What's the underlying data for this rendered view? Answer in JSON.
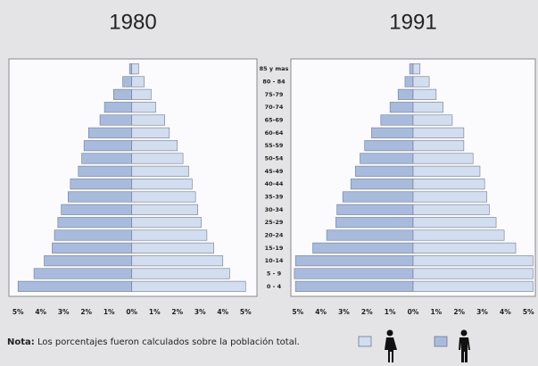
{
  "chart_data": [
    {
      "type": "pyramid",
      "title": "1980",
      "categories": [
        "0 - 4",
        "5 - 9",
        "10-14",
        "15-19",
        "20-24",
        "25-29",
        "30-34",
        "35-39",
        "40-44",
        "45-49",
        "50-54",
        "55-59",
        "60-64",
        "65-69",
        "70-74",
        "75-79",
        "80 - 84",
        "85 y mas"
      ],
      "series": [
        {
          "color": "#a9bbdc",
          "values": [
            -5.0,
            -4.3,
            -3.85,
            -3.5,
            -3.4,
            -3.25,
            -3.1,
            -2.8,
            -2.7,
            -2.35,
            -2.2,
            -2.1,
            -1.9,
            -1.4,
            -1.2,
            -0.8,
            -0.4,
            -0.1
          ]
        },
        {
          "color": "#d3ddf0",
          "values": [
            5.0,
            4.3,
            4.0,
            3.6,
            3.3,
            3.05,
            2.9,
            2.8,
            2.65,
            2.5,
            2.25,
            2.0,
            1.65,
            1.45,
            1.05,
            0.85,
            0.55,
            0.3
          ]
        }
      ],
      "xlim": [
        -5.4,
        5.5
      ],
      "xticks": [
        {
          "value": -5,
          "label": "5%"
        },
        {
          "value": -4,
          "label": "4%"
        },
        {
          "value": -3,
          "label": "3%"
        },
        {
          "value": -2,
          "label": "2%"
        },
        {
          "value": -1,
          "label": "1%"
        },
        {
          "value": 0,
          "label": "0%"
        },
        {
          "value": 1,
          "label": "1%"
        },
        {
          "value": 2,
          "label": "2%"
        },
        {
          "value": 3,
          "label": "3%"
        },
        {
          "value": 4,
          "label": "4%"
        },
        {
          "value": 5,
          "label": "5%"
        }
      ]
    },
    {
      "type": "pyramid",
      "title": "1991",
      "series": [
        {
          "color": "#a9bbdc",
          "values": [
            -5.1,
            -5.15,
            -5.1,
            -4.35,
            -3.75,
            -3.35,
            -3.3,
            -3.05,
            -2.7,
            -2.5,
            -2.3,
            -2.1,
            -1.8,
            -1.4,
            -1.0,
            -0.65,
            -0.35,
            -0.15
          ]
        },
        {
          "color": "#d3ddf0",
          "values": [
            5.2,
            5.2,
            5.2,
            4.45,
            3.95,
            3.6,
            3.3,
            3.2,
            3.1,
            2.9,
            2.6,
            2.2,
            2.2,
            1.7,
            1.3,
            1.0,
            0.7,
            0.3
          ]
        }
      ],
      "xlim": [
        -5.3,
        5.3
      ],
      "xticks": [
        {
          "value": -5,
          "label": "5%"
        },
        {
          "value": -4,
          "label": "4%"
        },
        {
          "value": -3,
          "label": "3%"
        },
        {
          "value": -2,
          "label": "2%"
        },
        {
          "value": -1,
          "label": "1%"
        },
        {
          "value": 0,
          "label": "0%"
        },
        {
          "value": 1,
          "label": "1%"
        },
        {
          "value": 2,
          "label": "2%"
        },
        {
          "value": 3,
          "label": "3%"
        },
        {
          "value": 4,
          "label": "4%"
        },
        {
          "value": 5,
          "label": "5%"
        }
      ]
    }
  ],
  "note_label": "Nota:",
  "note": "Los porcentajes fueron calculados sobre la población total."
}
